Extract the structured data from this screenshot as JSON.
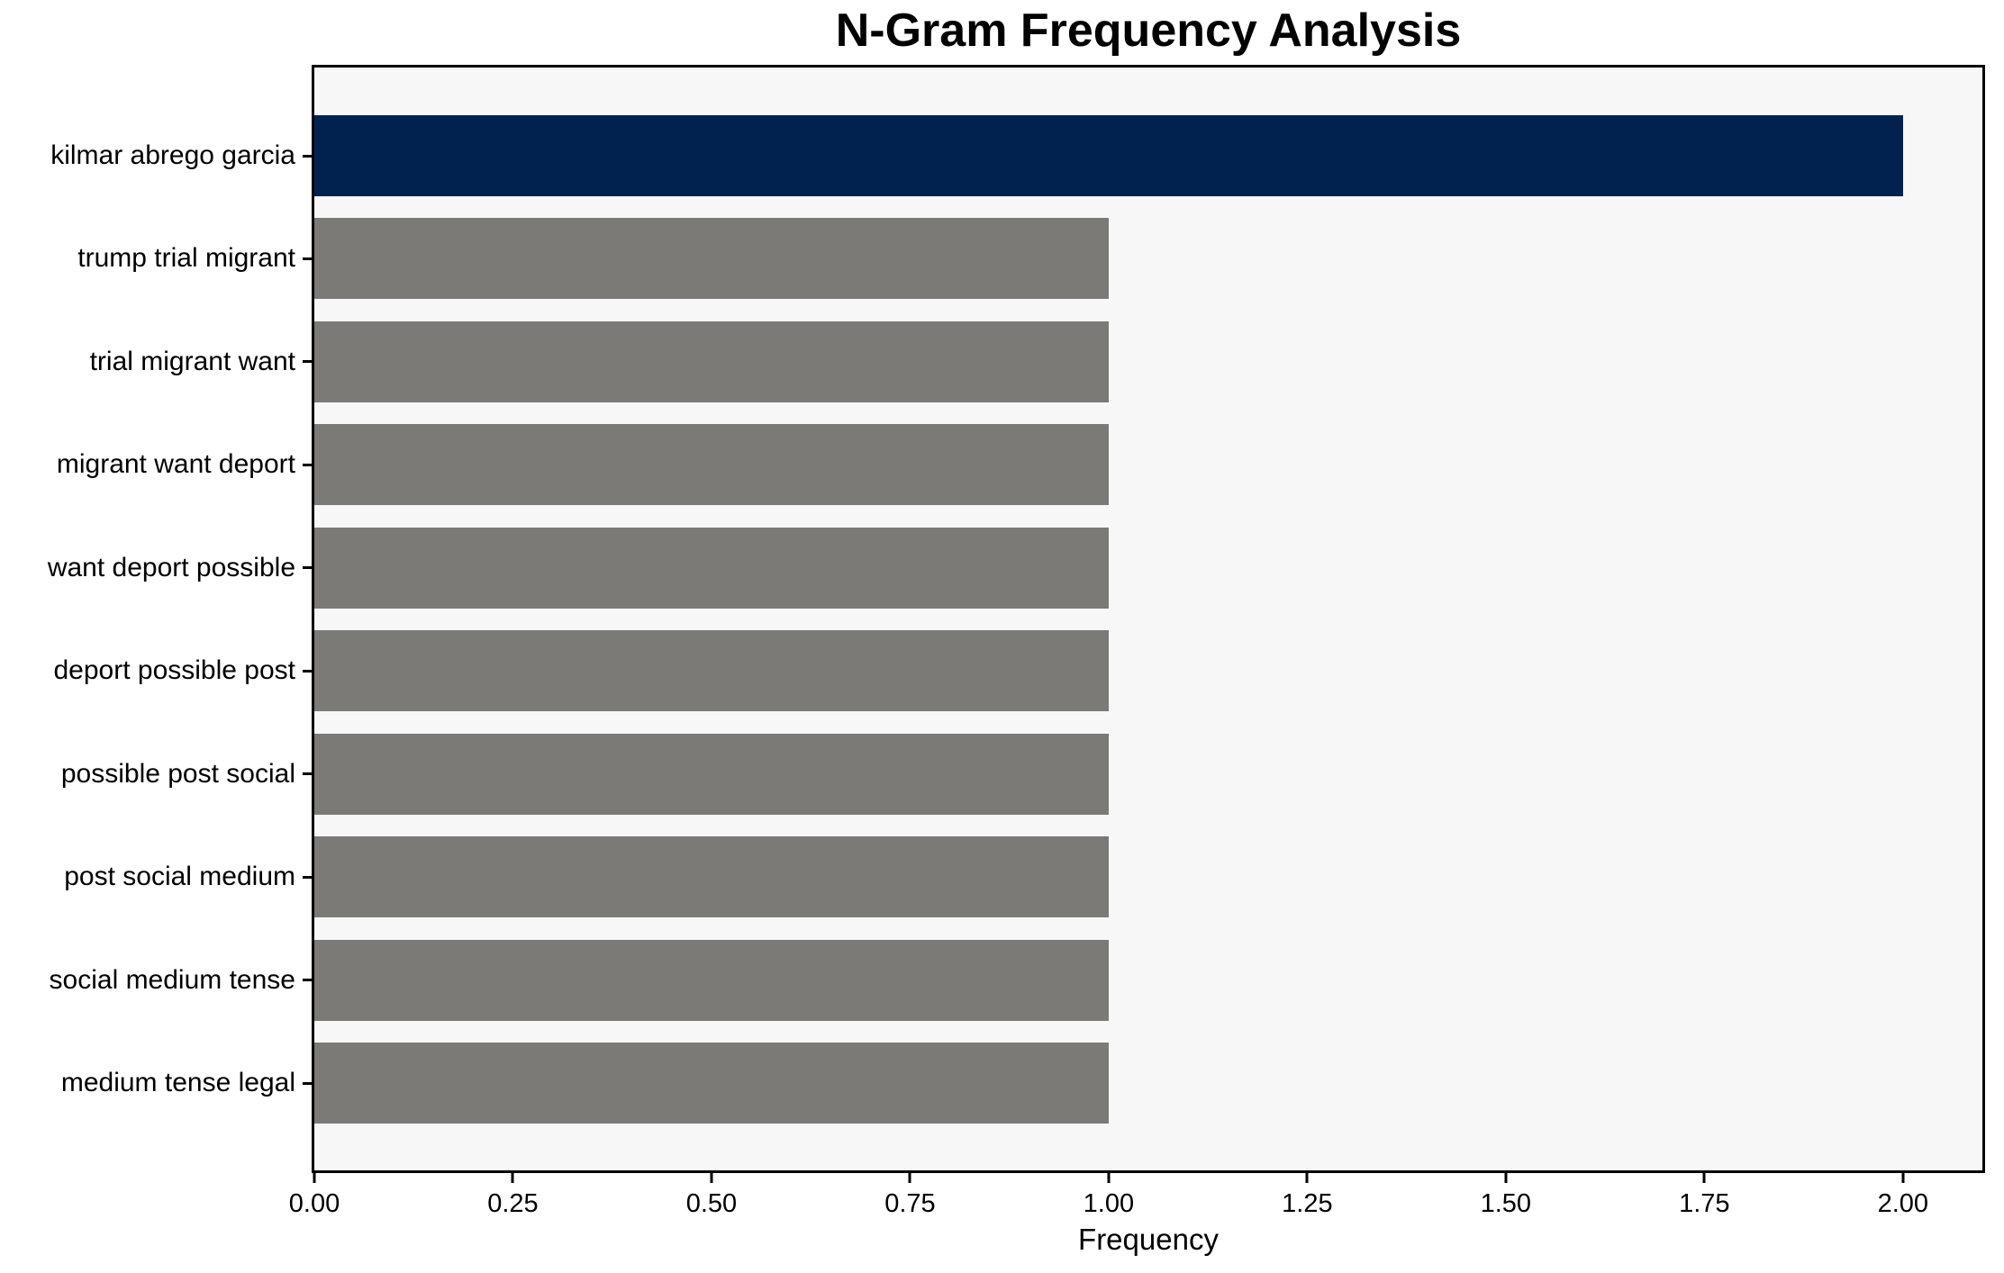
{
  "chart_data": {
    "type": "bar",
    "orientation": "horizontal",
    "title": "N-Gram Frequency Analysis",
    "xlabel": "Frequency",
    "ylabel": "",
    "categories": [
      "kilmar abrego garcia",
      "trump trial migrant",
      "trial migrant want",
      "migrant want deport",
      "want deport possible",
      "deport possible post",
      "possible post social",
      "post social medium",
      "social medium tense",
      "medium tense legal"
    ],
    "values": [
      2.0,
      1.0,
      1.0,
      1.0,
      1.0,
      1.0,
      1.0,
      1.0,
      1.0,
      1.0
    ],
    "highlighted_category": "kilmar abrego garcia",
    "xlim": [
      0,
      2.1
    ],
    "x_ticks": {
      "values": [
        0.0,
        0.25,
        0.5,
        0.75,
        1.0,
        1.25,
        1.5,
        1.75,
        2.0
      ],
      "labels": [
        "0.00",
        "0.25",
        "0.50",
        "0.75",
        "1.00",
        "1.25",
        "1.50",
        "1.75",
        "2.00"
      ]
    },
    "grid": false,
    "legend": null,
    "colors": {
      "highlight_bar": "#01224f",
      "default_bar": "#7b7a76",
      "plot_background": "#f7f7f7",
      "axis": "#000000",
      "text": "#000000",
      "page_background": "#ffffff"
    }
  }
}
